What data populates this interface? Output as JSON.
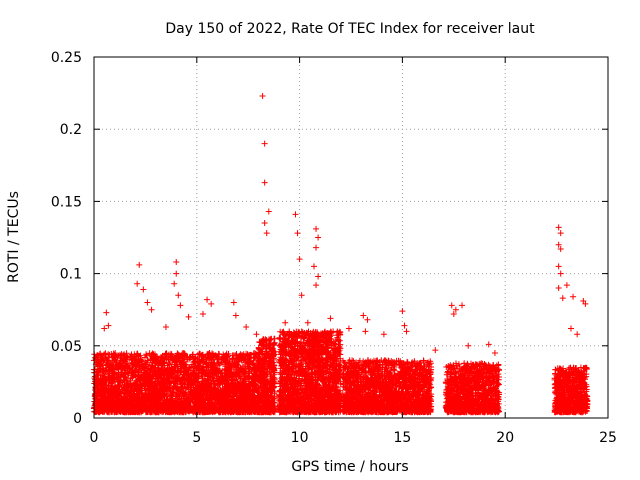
{
  "chart_data": {
    "type": "scatter",
    "title": "Day 150 of 2022, Rate Of TEC Index for receiver laut",
    "xlabel": "GPS time / hours",
    "ylabel": "ROTI / TECUs",
    "xlim": [
      0,
      25
    ],
    "ylim": [
      0,
      0.25
    ],
    "xticks": [
      "0",
      "5",
      "10",
      "15",
      "20",
      "25"
    ],
    "yticks": [
      "0",
      "0.05",
      "0.1",
      "0.15",
      "0.2",
      "0.25"
    ],
    "grid": true,
    "marker": "plus",
    "color": "#ff0000",
    "series": [
      {
        "points": [
          [
            8.2,
            0.223
          ],
          [
            8.3,
            0.19
          ],
          [
            8.3,
            0.163
          ],
          [
            8.5,
            0.143
          ],
          [
            8.3,
            0.135
          ],
          [
            8.4,
            0.128
          ],
          [
            9.8,
            0.141
          ],
          [
            9.9,
            0.128
          ],
          [
            10.0,
            0.11
          ],
          [
            10.1,
            0.085
          ],
          [
            10.8,
            0.131
          ],
          [
            10.9,
            0.125
          ],
          [
            10.8,
            0.118
          ],
          [
            10.7,
            0.105
          ],
          [
            10.9,
            0.098
          ],
          [
            10.8,
            0.092
          ],
          [
            2.2,
            0.106
          ],
          [
            2.1,
            0.093
          ],
          [
            2.4,
            0.089
          ],
          [
            2.6,
            0.08
          ],
          [
            2.8,
            0.075
          ],
          [
            4.0,
            0.108
          ],
          [
            4.0,
            0.1
          ],
          [
            3.9,
            0.093
          ],
          [
            4.1,
            0.085
          ],
          [
            4.2,
            0.078
          ],
          [
            5.5,
            0.082
          ],
          [
            5.7,
            0.079
          ],
          [
            5.3,
            0.072
          ],
          [
            4.6,
            0.07
          ],
          [
            0.6,
            0.073
          ],
          [
            0.7,
            0.064
          ],
          [
            0.5,
            0.062
          ],
          [
            6.8,
            0.08
          ],
          [
            6.9,
            0.071
          ],
          [
            7.4,
            0.063
          ],
          [
            13.1,
            0.071
          ],
          [
            13.3,
            0.068
          ],
          [
            13.2,
            0.06
          ],
          [
            15.0,
            0.074
          ],
          [
            15.1,
            0.064
          ],
          [
            15.2,
            0.06
          ],
          [
            17.4,
            0.078
          ],
          [
            17.6,
            0.075
          ],
          [
            17.9,
            0.078
          ],
          [
            17.5,
            0.072
          ],
          [
            18.2,
            0.05
          ],
          [
            22.6,
            0.132
          ],
          [
            22.7,
            0.128
          ],
          [
            22.6,
            0.12
          ],
          [
            22.7,
            0.117
          ],
          [
            22.6,
            0.105
          ],
          [
            22.7,
            0.1
          ],
          [
            22.6,
            0.09
          ],
          [
            23.0,
            0.092
          ],
          [
            22.8,
            0.083
          ],
          [
            23.3,
            0.084
          ],
          [
            23.8,
            0.081
          ],
          [
            23.9,
            0.079
          ],
          [
            23.2,
            0.062
          ],
          [
            23.5,
            0.058
          ],
          [
            12.4,
            0.062
          ],
          [
            11.5,
            0.069
          ],
          [
            10.4,
            0.066
          ],
          [
            9.3,
            0.066
          ],
          [
            7.9,
            0.058
          ],
          [
            19.2,
            0.051
          ],
          [
            19.5,
            0.045
          ],
          [
            16.6,
            0.047
          ],
          [
            14.1,
            0.058
          ],
          [
            3.5,
            0.063
          ]
        ]
      }
    ],
    "background_bands": [
      {
        "start": 0.0,
        "end": 8.0,
        "lo": 0.004,
        "hi": 0.045,
        "count": 3800
      },
      {
        "start": 8.0,
        "end": 8.8,
        "lo": 0.004,
        "hi": 0.055,
        "count": 550
      },
      {
        "start": 9.0,
        "end": 12.0,
        "lo": 0.004,
        "hi": 0.06,
        "count": 1900
      },
      {
        "start": 12.1,
        "end": 16.4,
        "lo": 0.004,
        "hi": 0.04,
        "count": 2000
      },
      {
        "start": 17.1,
        "end": 19.7,
        "lo": 0.004,
        "hi": 0.038,
        "count": 1100
      },
      {
        "start": 22.4,
        "end": 24.0,
        "lo": 0.004,
        "hi": 0.035,
        "count": 700
      }
    ]
  }
}
